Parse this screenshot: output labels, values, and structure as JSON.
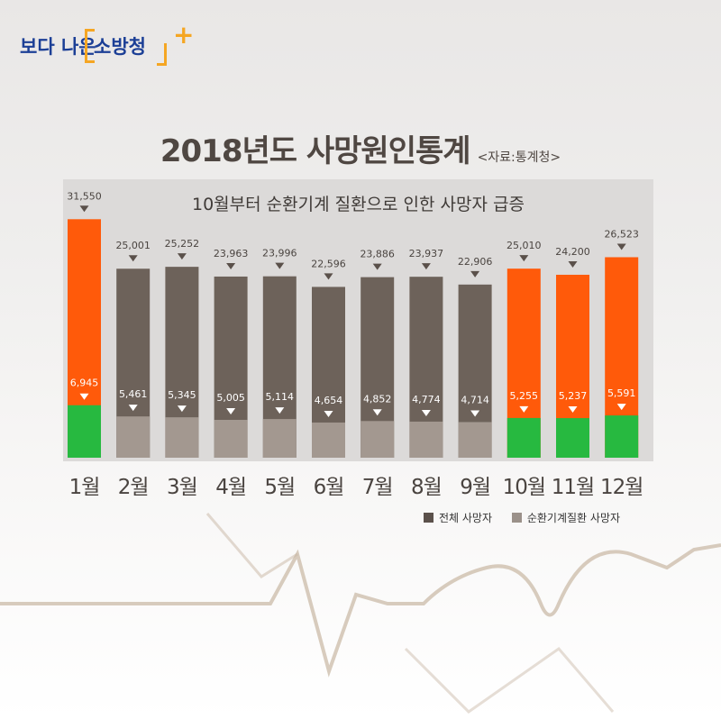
{
  "logo": {
    "prefix": "보다 나은",
    "name": "소방청",
    "plus": "+"
  },
  "header": {
    "title": "2018년도 사망원인통계",
    "source": "<자료:통계청>"
  },
  "chart_data": {
    "type": "bar",
    "title": "2018년도 사망원인통계",
    "subtitle": "10월부터 순환기계 질환으로 인한 사망자 급증",
    "categories": [
      "1월",
      "2월",
      "3월",
      "4월",
      "5월",
      "6월",
      "7월",
      "8월",
      "9월",
      "10월",
      "11월",
      "12월"
    ],
    "series": [
      {
        "name": "전체 사망자",
        "values": [
          31550,
          25001,
          25252,
          23963,
          23996,
          22596,
          23886,
          23937,
          22906,
          25010,
          24200,
          26523
        ],
        "labels": [
          "31,550",
          "25,001",
          "25,252",
          "23,963",
          "23,996",
          "22,596",
          "23,886",
          "23,937",
          "22,906",
          "25,010",
          "24,200",
          "26,523"
        ]
      },
      {
        "name": "순환기계질환 사망자",
        "values": [
          6945,
          5461,
          5345,
          5005,
          5114,
          4654,
          4852,
          4774,
          4714,
          5255,
          5237,
          5591
        ],
        "labels": [
          "6,945",
          "5,461",
          "5,345",
          "5,005",
          "5,114",
          "4,654",
          "4,852",
          "4,774",
          "4,714",
          "5,255",
          "5,237",
          "5,591"
        ]
      }
    ],
    "highlight_months": [
      "1월",
      "10월",
      "11월",
      "12월"
    ],
    "legend_position": "bottom-right"
  },
  "colors": {
    "total_normal": "#6d625a",
    "circ_normal": "#a39890",
    "total_highlight": "#ff5a0a",
    "circ_highlight": "#27b940",
    "legend_total": "#5b514b",
    "legend_circ": "#9b918a"
  }
}
